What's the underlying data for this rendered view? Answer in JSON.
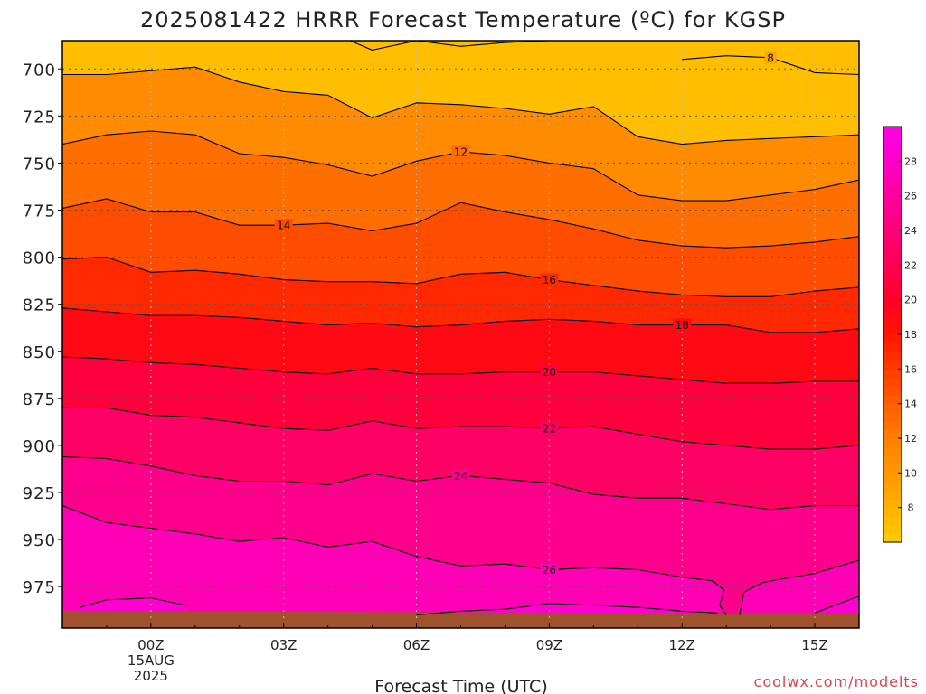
{
  "chart_data": {
    "type": "contour",
    "title": "2025081422 HRRR Forecast Temperature (ºC) for KGSP",
    "xlabel": "Forecast Time (UTC)",
    "ylabel": "",
    "credit": "coolwx.com/modelts",
    "x_ticks": [
      {
        "hour": 0,
        "label": "00Z",
        "sublabel1": "15AUG",
        "sublabel2": "2025"
      },
      {
        "hour": 3,
        "label": "03Z"
      },
      {
        "hour": 6,
        "label": "06Z"
      },
      {
        "hour": 9,
        "label": "09Z"
      },
      {
        "hour": 12,
        "label": "12Z"
      },
      {
        "hour": 15,
        "label": "15Z"
      }
    ],
    "xlim": [
      -2,
      16
    ],
    "y_ticks": [
      700,
      725,
      750,
      775,
      800,
      825,
      850,
      875,
      900,
      925,
      950,
      975
    ],
    "ylim_pressure": [
      685,
      997
    ],
    "ground_pressure_approx": 990,
    "colorbar_ticks": [
      8,
      10,
      12,
      14,
      16,
      18,
      20,
      22,
      24,
      26,
      28
    ],
    "colorbar_range": [
      6,
      30
    ],
    "contours": [
      {
        "level": 8,
        "label": "8",
        "label_hour": 14,
        "points": [
          [
            12,
            695
          ],
          [
            13,
            693
          ],
          [
            14,
            694
          ],
          [
            15,
            702
          ],
          [
            16,
            703
          ]
        ]
      },
      {
        "level": 10,
        "label": "",
        "points": [
          [
            -2,
            703
          ],
          [
            -1,
            703
          ],
          [
            0,
            701
          ],
          [
            1,
            699
          ],
          [
            2,
            707
          ],
          [
            3,
            712
          ],
          [
            4,
            714
          ],
          [
            5,
            726
          ],
          [
            6,
            718
          ],
          [
            7,
            719
          ],
          [
            8,
            721
          ],
          [
            9,
            724
          ],
          [
            10,
            720
          ],
          [
            11,
            736
          ],
          [
            12,
            740
          ],
          [
            13,
            738
          ],
          [
            14,
            737
          ],
          [
            15,
            736
          ],
          [
            16,
            735
          ]
        ]
      },
      {
        "level": 12,
        "label": "12",
        "label_hour": 7,
        "points": [
          [
            -2,
            740
          ],
          [
            -1,
            735
          ],
          [
            0,
            733
          ],
          [
            1,
            735
          ],
          [
            2,
            745
          ],
          [
            3,
            747
          ],
          [
            4,
            751
          ],
          [
            5,
            757
          ],
          [
            6,
            749
          ],
          [
            7,
            744
          ],
          [
            8,
            746
          ],
          [
            9,
            750
          ],
          [
            10,
            753
          ],
          [
            11,
            767
          ],
          [
            12,
            770
          ],
          [
            13,
            770
          ],
          [
            14,
            767
          ],
          [
            15,
            764
          ],
          [
            16,
            759
          ]
        ]
      },
      {
        "level": 14,
        "label": "14",
        "label_hour": 3,
        "points": [
          [
            -2,
            774
          ],
          [
            -1,
            769
          ],
          [
            0,
            776
          ],
          [
            1,
            776
          ],
          [
            2,
            783
          ],
          [
            3,
            783
          ],
          [
            4,
            782
          ],
          [
            5,
            786
          ],
          [
            6,
            782
          ],
          [
            7,
            771
          ],
          [
            8,
            776
          ],
          [
            9,
            780
          ],
          [
            10,
            785
          ],
          [
            11,
            791
          ],
          [
            12,
            794
          ],
          [
            13,
            795
          ],
          [
            14,
            794
          ],
          [
            15,
            792
          ],
          [
            16,
            789
          ]
        ]
      },
      {
        "level": 16,
        "label": "16",
        "label_hour": 9,
        "points": [
          [
            -2,
            801
          ],
          [
            -1,
            800
          ],
          [
            0,
            808
          ],
          [
            1,
            807
          ],
          [
            2,
            809
          ],
          [
            3,
            812
          ],
          [
            4,
            813
          ],
          [
            5,
            813
          ],
          [
            6,
            814
          ],
          [
            7,
            809
          ],
          [
            8,
            808
          ],
          [
            9,
            812
          ],
          [
            10,
            815
          ],
          [
            11,
            818
          ],
          [
            12,
            820
          ],
          [
            13,
            821
          ],
          [
            14,
            821
          ],
          [
            15,
            818
          ],
          [
            16,
            816
          ]
        ]
      },
      {
        "level": 18,
        "label": "18",
        "label_hour": 12,
        "points": [
          [
            -2,
            827
          ],
          [
            -1,
            829
          ],
          [
            0,
            831
          ],
          [
            1,
            831
          ],
          [
            2,
            832
          ],
          [
            3,
            834
          ],
          [
            4,
            836
          ],
          [
            5,
            835
          ],
          [
            6,
            837
          ],
          [
            7,
            836
          ],
          [
            8,
            834
          ],
          [
            9,
            833
          ],
          [
            10,
            834
          ],
          [
            11,
            836
          ],
          [
            12,
            836
          ],
          [
            13,
            836
          ],
          [
            14,
            840
          ],
          [
            15,
            840
          ],
          [
            16,
            838
          ]
        ]
      },
      {
        "level": 20,
        "label": "20",
        "label_hour": 9,
        "points": [
          [
            -2,
            853
          ],
          [
            -1,
            854
          ],
          [
            0,
            856
          ],
          [
            1,
            857
          ],
          [
            2,
            859
          ],
          [
            3,
            861
          ],
          [
            4,
            862
          ],
          [
            5,
            859
          ],
          [
            6,
            862
          ],
          [
            7,
            862
          ],
          [
            8,
            861
          ],
          [
            9,
            861
          ],
          [
            10,
            861
          ],
          [
            11,
            863
          ],
          [
            12,
            865
          ],
          [
            13,
            867
          ],
          [
            14,
            867
          ],
          [
            15,
            866
          ],
          [
            16,
            866
          ]
        ]
      },
      {
        "level": 22,
        "label": "22",
        "label_hour": 9,
        "points": [
          [
            -2,
            880
          ],
          [
            -1,
            880
          ],
          [
            0,
            884
          ],
          [
            1,
            885
          ],
          [
            2,
            888
          ],
          [
            3,
            891
          ],
          [
            4,
            892
          ],
          [
            5,
            887
          ],
          [
            6,
            891
          ],
          [
            7,
            890
          ],
          [
            8,
            890
          ],
          [
            9,
            891
          ],
          [
            10,
            890
          ],
          [
            11,
            894
          ],
          [
            12,
            898
          ],
          [
            13,
            900
          ],
          [
            14,
            902
          ],
          [
            15,
            902
          ],
          [
            16,
            900
          ]
        ]
      },
      {
        "level": 24,
        "label": "24",
        "label_hour": 7,
        "points": [
          [
            -2,
            906
          ],
          [
            -1,
            907
          ],
          [
            0,
            911
          ],
          [
            1,
            916
          ],
          [
            2,
            919
          ],
          [
            3,
            919
          ],
          [
            4,
            921
          ],
          [
            5,
            915
          ],
          [
            6,
            919
          ],
          [
            7,
            916
          ],
          [
            8,
            918
          ],
          [
            9,
            920
          ],
          [
            10,
            926
          ],
          [
            11,
            928
          ],
          [
            12,
            928
          ],
          [
            13,
            931
          ],
          [
            14,
            934
          ],
          [
            15,
            932
          ],
          [
            16,
            932
          ]
        ]
      },
      {
        "level": 26,
        "label": "26",
        "label_hour": 9,
        "points": [
          [
            -2,
            932
          ],
          [
            -1,
            941
          ],
          [
            0,
            944
          ],
          [
            1,
            947
          ],
          [
            2,
            951
          ],
          [
            3,
            949
          ],
          [
            4,
            954
          ],
          [
            5,
            951
          ],
          [
            6,
            959
          ],
          [
            7,
            964
          ],
          [
            8,
            963
          ],
          [
            9,
            966
          ],
          [
            10,
            965
          ],
          [
            11,
            966
          ],
          [
            12,
            970
          ],
          [
            12.7,
            972
          ],
          [
            12.95,
            977
          ],
          [
            12.85,
            985
          ],
          [
            13,
            990
          ]
        ]
      },
      {
        "level": 26,
        "label": "",
        "points": [
          [
            13.3,
            990
          ],
          [
            13.4,
            978
          ],
          [
            13.8,
            973
          ],
          [
            14,
            972
          ],
          [
            15,
            968
          ],
          [
            16,
            961
          ]
        ]
      },
      {
        "level": 28,
        "label": "",
        "points": [
          [
            -1.6,
            986
          ],
          [
            -1,
            982
          ],
          [
            0,
            981
          ],
          [
            0.8,
            985
          ]
        ]
      },
      {
        "level": 28,
        "label": "",
        "points": [
          [
            6,
            990
          ],
          [
            7,
            988
          ],
          [
            8,
            987
          ],
          [
            9,
            984
          ],
          [
            10,
            985
          ],
          [
            11,
            986
          ],
          [
            12,
            988
          ],
          [
            12.8,
            989
          ]
        ]
      },
      {
        "level": 28,
        "label": "",
        "points": [
          [
            15,
            989
          ],
          [
            16,
            980
          ]
        ]
      }
    ],
    "top_contours": [
      {
        "level": 8,
        "label": "",
        "points": [
          [
            4.5,
            685
          ],
          [
            5,
            690
          ],
          [
            6,
            685
          ],
          [
            7,
            688
          ],
          [
            8,
            686
          ],
          [
            9,
            685
          ]
        ]
      }
    ]
  }
}
